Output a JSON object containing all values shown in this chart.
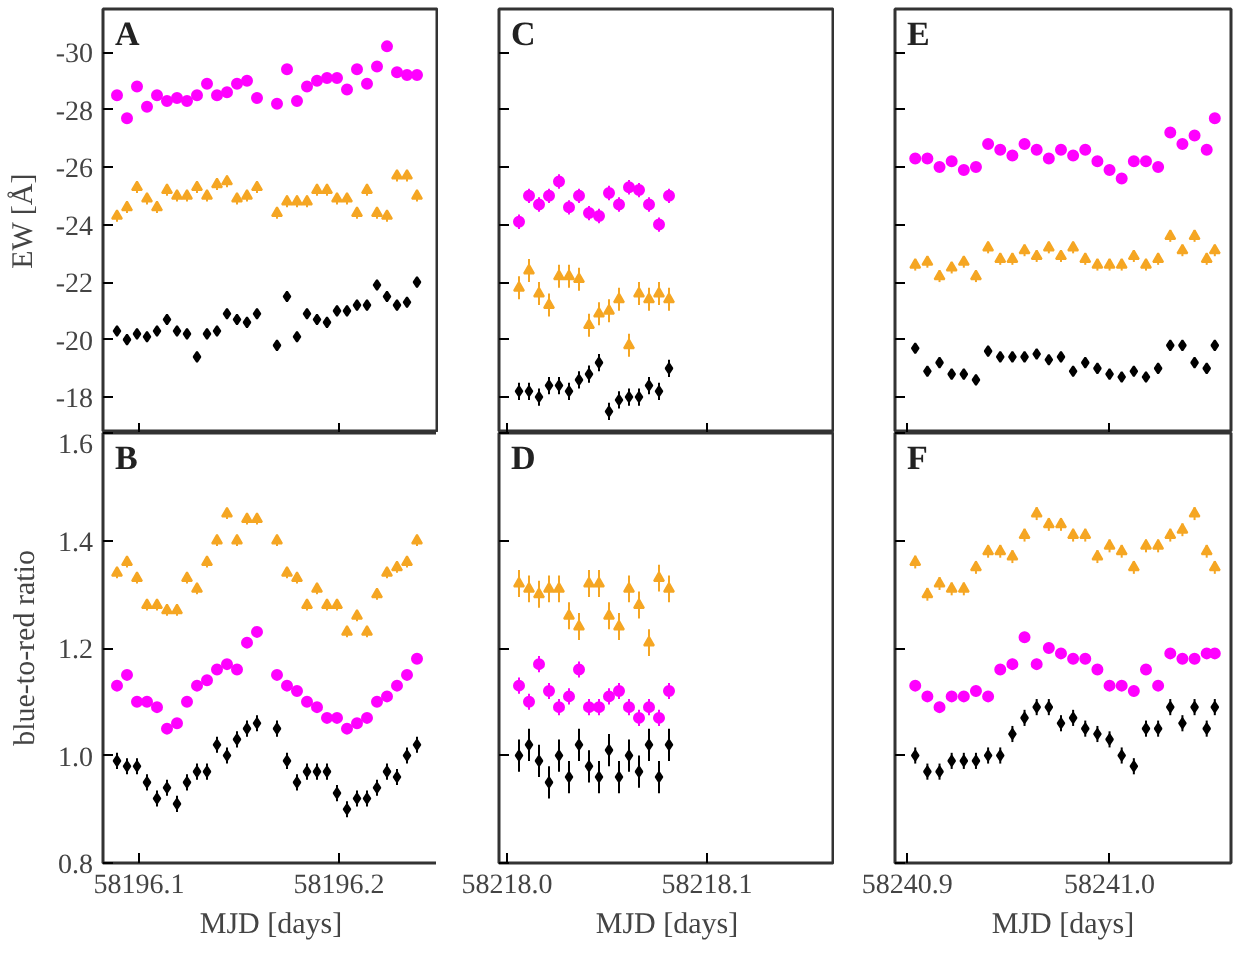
{
  "chart_data": [
    {
      "type": "scatter",
      "title": "A",
      "ylabel": "EW [Å]",
      "tick_labels": "y",
      "xlim": [
        58196.082,
        58196.25
      ],
      "ylim": [
        -16.75,
        -31.5
      ],
      "xticks": [
        58196.1,
        58196.2
      ],
      "yticks": [
        -30,
        -28,
        -26,
        -24,
        -22,
        -20,
        -18
      ],
      "x": [
        58196.089,
        58196.094,
        58196.099,
        58196.104,
        58196.109,
        58196.114,
        58196.119,
        58196.124,
        58196.129,
        58196.134,
        58196.139,
        58196.144,
        58196.149,
        58196.154,
        58196.159,
        58196.169,
        58196.174,
        58196.179,
        58196.184,
        58196.189,
        58196.194,
        58196.199,
        58196.204,
        58196.209,
        58196.214,
        58196.219,
        58196.224,
        58196.229,
        58196.234,
        58196.239
      ],
      "series": [
        {
          "color": "#ff00ff",
          "marker": "circle",
          "values": [
            -28.5,
            -27.7,
            -28.8,
            -28.1,
            -28.5,
            -28.3,
            -28.4,
            -28.3,
            -28.5,
            -28.9,
            -28.5,
            -28.6,
            -28.9,
            -29.0,
            -28.4,
            -28.2,
            -29.4,
            -28.3,
            -28.8,
            -29.0,
            -29.1,
            -29.1,
            -28.7,
            -29.4,
            -28.9,
            -29.5,
            -30.2,
            -29.3,
            -29.2,
            -29.2
          ],
          "errors": [
            0.15,
            0.15,
            0.15,
            0.15,
            0.15,
            0.15,
            0.15,
            0.15,
            0.15,
            0.15,
            0.15,
            0.15,
            0.15,
            0.15,
            0.15,
            0.15,
            0.15,
            0.15,
            0.15,
            0.15,
            0.15,
            0.15,
            0.15,
            0.15,
            0.15,
            0.15,
            0.15,
            0.15,
            0.15,
            0.15
          ]
        },
        {
          "color": "#f5a623",
          "marker": "triangle",
          "values": [
            -24.3,
            -24.6,
            -25.3,
            -24.9,
            -24.6,
            -25.2,
            -25.0,
            -25.0,
            -25.3,
            -25.0,
            -25.4,
            -25.5,
            -24.9,
            -25.0,
            -25.3,
            -24.4,
            -24.8,
            -24.8,
            -24.8,
            -25.2,
            -25.2,
            -24.9,
            -24.9,
            -24.4,
            -25.2,
            -24.4,
            -24.3,
            -25.7,
            -25.7,
            -25.0
          ],
          "errors": [
            0.2,
            0.2,
            0.2,
            0.2,
            0.2,
            0.2,
            0.2,
            0.2,
            0.2,
            0.2,
            0.2,
            0.2,
            0.2,
            0.2,
            0.2,
            0.2,
            0.2,
            0.2,
            0.2,
            0.2,
            0.2,
            0.2,
            0.2,
            0.2,
            0.2,
            0.2,
            0.2,
            0.2,
            0.2,
            0.2
          ]
        },
        {
          "color": "#000000",
          "marker": "diamond",
          "values": [
            -20.3,
            -20.0,
            -20.2,
            -20.1,
            -20.3,
            -20.7,
            -20.3,
            -20.2,
            -19.4,
            -20.2,
            -20.3,
            -20.9,
            -20.7,
            -20.6,
            -20.9,
            -19.8,
            -21.5,
            -20.1,
            -20.9,
            -20.7,
            -20.6,
            -21.0,
            -21.0,
            -21.2,
            -21.2,
            -21.9,
            -21.5,
            -21.2,
            -21.3,
            -22.0
          ],
          "errors": [
            0.15,
            0.15,
            0.15,
            0.15,
            0.15,
            0.15,
            0.15,
            0.15,
            0.15,
            0.15,
            0.15,
            0.15,
            0.15,
            0.15,
            0.15,
            0.15,
            0.15,
            0.15,
            0.15,
            0.15,
            0.15,
            0.15,
            0.15,
            0.15,
            0.15,
            0.15,
            0.15,
            0.15,
            0.15,
            0.15
          ]
        }
      ]
    },
    {
      "type": "scatter",
      "title": "C",
      "tick_labels": false,
      "xlim": [
        58217.996,
        58218.164
      ],
      "ylim": [
        -16.75,
        -31.5
      ],
      "xticks": [
        {
          "value": 58218,
          "label": null
        },
        {
          "value": 58218.1,
          "label": null
        }
      ],
      "yticks": [
        -30,
        -28,
        -26,
        -24,
        -22,
        -20,
        -18
      ],
      "x": [
        58218.006,
        58218.011,
        58218.016,
        58218.021,
        58218.026,
        58218.031,
        58218.036,
        58218.041,
        58218.046,
        58218.051,
        58218.056,
        58218.061,
        58218.066,
        58218.071,
        58218.076,
        58218.081
      ],
      "series": [
        {
          "color": "#ff00ff",
          "marker": "circle",
          "values": [
            -24.1,
            -25.0,
            -24.7,
            -25.0,
            -25.5,
            -24.6,
            -25.0,
            -24.4,
            -24.3,
            -25.1,
            -24.7,
            -25.3,
            -25.2,
            -24.7,
            -24.0,
            -25.0
          ],
          "errors": [
            0.25,
            0.25,
            0.25,
            0.25,
            0.25,
            0.25,
            0.25,
            0.25,
            0.25,
            0.25,
            0.25,
            0.25,
            0.25,
            0.25,
            0.25,
            0.25
          ]
        },
        {
          "color": "#f5a623",
          "marker": "triangle",
          "values": [
            -21.8,
            -22.4,
            -21.6,
            -21.2,
            -22.2,
            -22.2,
            -22.1,
            -20.5,
            -20.9,
            -21.0,
            -21.4,
            -19.8,
            -21.6,
            -21.4,
            -21.6,
            -21.4
          ],
          "errors": [
            0.4,
            0.4,
            0.4,
            0.4,
            0.4,
            0.4,
            0.4,
            0.4,
            0.4,
            0.4,
            0.4,
            0.4,
            0.4,
            0.4,
            0.4,
            0.4
          ]
        },
        {
          "color": "#000000",
          "marker": "diamond",
          "values": [
            -18.2,
            -18.2,
            -18.0,
            -18.4,
            -18.4,
            -18.2,
            -18.6,
            -18.8,
            -19.2,
            -17.5,
            -17.9,
            -18.0,
            -18.0,
            -18.4,
            -18.2,
            -19.0
          ],
          "errors": [
            0.3,
            0.3,
            0.3,
            0.3,
            0.3,
            0.3,
            0.3,
            0.3,
            0.3,
            0.3,
            0.3,
            0.3,
            0.3,
            0.3,
            0.3,
            0.3
          ]
        }
      ]
    },
    {
      "type": "scatter",
      "title": "E",
      "tick_labels": false,
      "xlim": [
        58240.894,
        58241.06
      ],
      "ylim": [
        -16.75,
        -31.5
      ],
      "xticks": [
        {
          "value": 58240.9,
          "label": null
        },
        {
          "value": 58241,
          "label": null
        }
      ],
      "yticks": [
        -30,
        -28,
        -26,
        -24,
        -22,
        -20,
        -18
      ],
      "x": [
        58240.904,
        58240.91,
        58240.916,
        58240.922,
        58240.928,
        58240.934,
        58240.94,
        58240.946,
        58240.952,
        58240.958,
        58240.964,
        58240.97,
        58240.976,
        58240.982,
        58240.988,
        58240.994,
        58241.0,
        58241.006,
        58241.012,
        58241.018,
        58241.024,
        58241.03,
        58241.036,
        58241.042,
        58241.048,
        58241.052
      ],
      "series": [
        {
          "color": "#ff00ff",
          "marker": "circle",
          "values": [
            -26.3,
            -26.3,
            -26.0,
            -26.2,
            -25.9,
            -26.0,
            -26.8,
            -26.6,
            -26.4,
            -26.8,
            -26.6,
            -26.3,
            -26.6,
            -26.4,
            -26.6,
            -26.2,
            -25.9,
            -25.6,
            -26.2,
            -26.2,
            -26.0,
            -27.2,
            -26.8,
            -27.1,
            -26.6,
            -27.7
          ],
          "errors": [
            0.15,
            0.15,
            0.15,
            0.15,
            0.15,
            0.15,
            0.15,
            0.15,
            0.15,
            0.15,
            0.15,
            0.15,
            0.15,
            0.15,
            0.15,
            0.15,
            0.15,
            0.15,
            0.15,
            0.15,
            0.15,
            0.15,
            0.15,
            0.15,
            0.15,
            0.15
          ]
        },
        {
          "color": "#f5a623",
          "marker": "triangle",
          "values": [
            -22.6,
            -22.7,
            -22.2,
            -22.5,
            -22.7,
            -22.2,
            -23.2,
            -22.8,
            -22.8,
            -23.1,
            -22.9,
            -23.2,
            -22.9,
            -23.2,
            -22.8,
            -22.6,
            -22.6,
            -22.6,
            -22.9,
            -22.6,
            -22.8,
            -23.6,
            -23.1,
            -23.6,
            -22.8,
            -23.1
          ],
          "errors": [
            0.2,
            0.2,
            0.2,
            0.2,
            0.2,
            0.2,
            0.2,
            0.2,
            0.2,
            0.2,
            0.2,
            0.2,
            0.2,
            0.2,
            0.2,
            0.2,
            0.2,
            0.2,
            0.2,
            0.2,
            0.2,
            0.2,
            0.2,
            0.2,
            0.2,
            0.2
          ]
        },
        {
          "color": "#000000",
          "marker": "diamond",
          "values": [
            -19.7,
            -18.9,
            -19.2,
            -18.8,
            -18.8,
            -18.6,
            -19.6,
            -19.4,
            -19.4,
            -19.4,
            -19.5,
            -19.3,
            -19.4,
            -18.9,
            -19.2,
            -19.0,
            -18.8,
            -18.7,
            -18.9,
            -18.7,
            -19.0,
            -19.8,
            -19.8,
            -19.2,
            -19.0,
            -19.8
          ],
          "errors": [
            0.15,
            0.15,
            0.15,
            0.15,
            0.15,
            0.15,
            0.15,
            0.15,
            0.15,
            0.15,
            0.15,
            0.15,
            0.15,
            0.15,
            0.15,
            0.15,
            0.15,
            0.15,
            0.15,
            0.15,
            0.15,
            0.15,
            0.15,
            0.15,
            0.15,
            0.15
          ]
        }
      ]
    },
    {
      "type": "scatter",
      "title": "B",
      "xlabel": "MJD [days]",
      "ylabel": "blue-to-red ratio",
      "xlim": [
        58196.082,
        58196.25
      ],
      "ylim": [
        0.8,
        1.6
      ],
      "xticks": [
        58196.1,
        58196.2
      ],
      "yticks": [
        0.8,
        {
          "value": 1,
          "label": "1.0"
        },
        1.2,
        1.4,
        1.6
      ],
      "x": [
        58196.089,
        58196.094,
        58196.099,
        58196.104,
        58196.109,
        58196.114,
        58196.119,
        58196.124,
        58196.129,
        58196.134,
        58196.139,
        58196.144,
        58196.149,
        58196.154,
        58196.159,
        58196.169,
        58196.174,
        58196.179,
        58196.184,
        58196.189,
        58196.194,
        58196.199,
        58196.204,
        58196.209,
        58196.214,
        58196.219,
        58196.224,
        58196.229,
        58196.234,
        58196.239
      ],
      "series": [
        {
          "color": "#f5a623",
          "marker": "triangle",
          "values": [
            1.34,
            1.36,
            1.33,
            1.28,
            1.28,
            1.27,
            1.27,
            1.33,
            1.31,
            1.36,
            1.4,
            1.45,
            1.4,
            1.44,
            1.44,
            1.4,
            1.34,
            1.33,
            1.28,
            1.31,
            1.28,
            1.28,
            1.23,
            1.26,
            1.23,
            1.3,
            1.34,
            1.35,
            1.36,
            1.4
          ],
          "errors": [
            0.01,
            0.01,
            0.01,
            0.01,
            0.01,
            0.01,
            0.01,
            0.01,
            0.01,
            0.01,
            0.01,
            0.01,
            0.01,
            0.01,
            0.01,
            0.01,
            0.01,
            0.01,
            0.01,
            0.01,
            0.01,
            0.01,
            0.01,
            0.01,
            0.01,
            0.01,
            0.01,
            0.01,
            0.01,
            0.01
          ]
        },
        {
          "color": "#ff00ff",
          "marker": "circle",
          "values": [
            1.13,
            1.15,
            1.1,
            1.1,
            1.09,
            1.05,
            1.06,
            1.1,
            1.13,
            1.14,
            1.16,
            1.17,
            1.16,
            1.21,
            1.23,
            1.15,
            1.13,
            1.12,
            1.1,
            1.09,
            1.07,
            1.07,
            1.05,
            1.06,
            1.07,
            1.1,
            1.11,
            1.13,
            1.15,
            1.18
          ],
          "errors": [
            0.008,
            0.008,
            0.008,
            0.008,
            0.008,
            0.008,
            0.008,
            0.008,
            0.008,
            0.008,
            0.008,
            0.008,
            0.008,
            0.008,
            0.008,
            0.008,
            0.008,
            0.008,
            0.008,
            0.008,
            0.008,
            0.008,
            0.008,
            0.008,
            0.008,
            0.008,
            0.008,
            0.008,
            0.008,
            0.008
          ]
        },
        {
          "color": "#000000",
          "marker": "diamond",
          "values": [
            0.99,
            0.98,
            0.98,
            0.95,
            0.92,
            0.94,
            0.91,
            0.95,
            0.97,
            0.97,
            1.02,
            1.0,
            1.03,
            1.05,
            1.06,
            1.05,
            0.99,
            0.95,
            0.97,
            0.97,
            0.97,
            0.93,
            0.9,
            0.92,
            0.92,
            0.94,
            0.97,
            0.96,
            1.0,
            1.02
          ],
          "errors": [
            0.015,
            0.015,
            0.015,
            0.015,
            0.015,
            0.015,
            0.015,
            0.015,
            0.015,
            0.015,
            0.015,
            0.015,
            0.015,
            0.015,
            0.015,
            0.015,
            0.015,
            0.015,
            0.015,
            0.015,
            0.015,
            0.015,
            0.015,
            0.015,
            0.015,
            0.015,
            0.015,
            0.015,
            0.015,
            0.015
          ]
        }
      ]
    },
    {
      "type": "scatter",
      "title": "D",
      "xlabel": "MJD [days]",
      "tick_labels": "x",
      "xlim": [
        58217.996,
        58218.164
      ],
      "ylim": [
        0.8,
        1.6
      ],
      "xticks": [
        {
          "value": 58218,
          "label": "58218.0"
        },
        58218.1
      ],
      "yticks": [
        {
          "value": 0.8,
          "label": null
        },
        {
          "value": 1,
          "label": null
        },
        {
          "value": 1.2,
          "label": null
        },
        {
          "value": 1.4,
          "label": null
        },
        {
          "value": 1.6,
          "label": null
        }
      ],
      "x": [
        58218.006,
        58218.011,
        58218.016,
        58218.021,
        58218.026,
        58218.031,
        58218.036,
        58218.041,
        58218.046,
        58218.051,
        58218.056,
        58218.061,
        58218.066,
        58218.071,
        58218.076,
        58218.081
      ],
      "series": [
        {
          "color": "#f5a623",
          "marker": "triangle",
          "values": [
            1.32,
            1.31,
            1.3,
            1.31,
            1.31,
            1.26,
            1.24,
            1.32,
            1.32,
            1.26,
            1.24,
            1.31,
            1.28,
            1.21,
            1.33,
            1.31
          ],
          "errors": [
            0.025,
            0.025,
            0.025,
            0.025,
            0.025,
            0.025,
            0.025,
            0.025,
            0.025,
            0.025,
            0.025,
            0.025,
            0.025,
            0.025,
            0.025,
            0.025
          ]
        },
        {
          "color": "#ff00ff",
          "marker": "circle",
          "values": [
            1.13,
            1.1,
            1.17,
            1.12,
            1.09,
            1.11,
            1.16,
            1.09,
            1.09,
            1.11,
            1.12,
            1.09,
            1.07,
            1.09,
            1.07,
            1.12
          ],
          "errors": [
            0.015,
            0.015,
            0.015,
            0.015,
            0.015,
            0.015,
            0.015,
            0.015,
            0.015,
            0.015,
            0.015,
            0.015,
            0.015,
            0.015,
            0.015,
            0.015
          ]
        },
        {
          "color": "#000000",
          "marker": "diamond",
          "values": [
            1.0,
            1.02,
            0.99,
            0.95,
            1.0,
            0.96,
            1.02,
            0.98,
            0.96,
            1.01,
            0.96,
            1.0,
            0.97,
            1.02,
            0.96,
            1.02
          ],
          "errors": [
            0.03,
            0.03,
            0.03,
            0.03,
            0.03,
            0.03,
            0.03,
            0.03,
            0.03,
            0.03,
            0.03,
            0.03,
            0.03,
            0.03,
            0.03,
            0.03
          ]
        }
      ]
    },
    {
      "type": "scatter",
      "title": "F",
      "xlabel": "MJD [days]",
      "tick_labels": "x",
      "xlim": [
        58240.894,
        58241.06
      ],
      "ylim": [
        0.8,
        1.6
      ],
      "xticks": [
        58240.9,
        {
          "value": 58241,
          "label": "58241.0"
        }
      ],
      "yticks": [
        {
          "value": 0.8,
          "label": null
        },
        {
          "value": 1,
          "label": null
        },
        {
          "value": 1.2,
          "label": null
        },
        {
          "value": 1.4,
          "label": null
        },
        {
          "value": 1.6,
          "label": null
        }
      ],
      "x": [
        58240.904,
        58240.91,
        58240.916,
        58240.922,
        58240.928,
        58240.934,
        58240.94,
        58240.946,
        58240.952,
        58240.958,
        58240.964,
        58240.97,
        58240.976,
        58240.982,
        58240.988,
        58240.994,
        58241.0,
        58241.006,
        58241.012,
        58241.018,
        58241.024,
        58241.03,
        58241.036,
        58241.042,
        58241.048,
        58241.052
      ],
      "series": [
        {
          "color": "#f5a623",
          "marker": "triangle",
          "values": [
            1.36,
            1.3,
            1.32,
            1.31,
            1.31,
            1.35,
            1.38,
            1.38,
            1.37,
            1.41,
            1.45,
            1.43,
            1.43,
            1.41,
            1.41,
            1.37,
            1.39,
            1.38,
            1.35,
            1.39,
            1.39,
            1.41,
            1.42,
            1.45,
            1.38,
            1.35
          ],
          "errors": [
            0.012,
            0.012,
            0.012,
            0.012,
            0.012,
            0.012,
            0.012,
            0.012,
            0.012,
            0.012,
            0.012,
            0.012,
            0.012,
            0.012,
            0.012,
            0.012,
            0.012,
            0.012,
            0.012,
            0.012,
            0.012,
            0.012,
            0.012,
            0.012,
            0.012,
            0.012
          ]
        },
        {
          "color": "#ff00ff",
          "marker": "circle",
          "values": [
            1.13,
            1.11,
            1.09,
            1.11,
            1.11,
            1.12,
            1.11,
            1.16,
            1.17,
            1.22,
            1.17,
            1.2,
            1.19,
            1.18,
            1.18,
            1.16,
            1.13,
            1.13,
            1.12,
            1.16,
            1.13,
            1.19,
            1.18,
            1.18,
            1.19,
            1.19
          ],
          "errors": [
            0.01,
            0.01,
            0.01,
            0.01,
            0.01,
            0.01,
            0.01,
            0.01,
            0.01,
            0.01,
            0.01,
            0.01,
            0.01,
            0.01,
            0.01,
            0.01,
            0.01,
            0.01,
            0.01,
            0.01,
            0.01,
            0.01,
            0.01,
            0.01,
            0.01,
            0.01
          ]
        },
        {
          "color": "#000000",
          "marker": "diamond",
          "values": [
            1.0,
            0.97,
            0.97,
            0.99,
            0.99,
            0.99,
            1.0,
            1.0,
            1.04,
            1.07,
            1.09,
            1.09,
            1.06,
            1.07,
            1.05,
            1.04,
            1.03,
            1.0,
            0.98,
            1.05,
            1.05,
            1.09,
            1.06,
            1.09,
            1.05,
            1.09
          ],
          "errors": [
            0.015,
            0.015,
            0.015,
            0.015,
            0.015,
            0.015,
            0.015,
            0.015,
            0.015,
            0.015,
            0.015,
            0.015,
            0.015,
            0.015,
            0.015,
            0.015,
            0.015,
            0.015,
            0.015,
            0.015,
            0.015,
            0.015,
            0.015,
            0.015,
            0.015,
            0.015
          ]
        }
      ]
    }
  ]
}
